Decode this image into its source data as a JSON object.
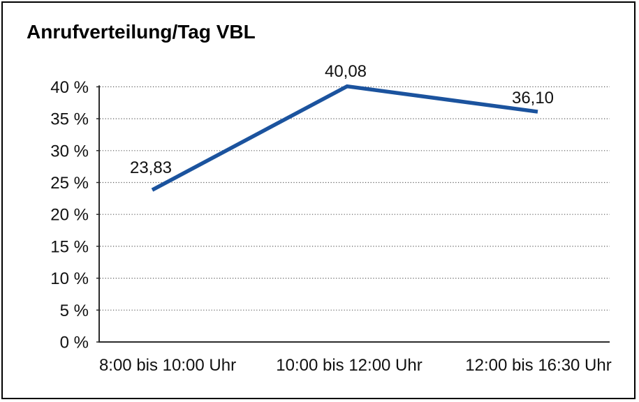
{
  "window": {
    "background": "#ffffff",
    "frame_border_color": "#000000"
  },
  "chart_data": {
    "type": "line",
    "title": "Anrufverteilung/Tag VBL",
    "categories": [
      "8:00 bis 10:00 Uhr",
      "10:00 bis 12:00 Uhr",
      "12:00 bis 16:30 Uhr"
    ],
    "values": [
      23.83,
      40.08,
      36.1
    ],
    "value_labels": [
      "23,83",
      "40,08",
      "36,10"
    ],
    "series_name": "Anrufverteilung",
    "xlabel": "",
    "ylabel": "",
    "ylim": [
      0,
      40
    ],
    "y_step": 5,
    "y_tick_labels": [
      "0 %",
      "5 %",
      "10 %",
      "15 %",
      "20 %",
      "25 %",
      "30 %",
      "35 %",
      "40 %"
    ],
    "grid": "horizontal dotted gridlines on, vertical off",
    "legend": "none",
    "line_color": "#1B539E",
    "grid_color": "#5a5a5a",
    "axis_color": "#2b2b2b",
    "label_color": "#111111"
  }
}
